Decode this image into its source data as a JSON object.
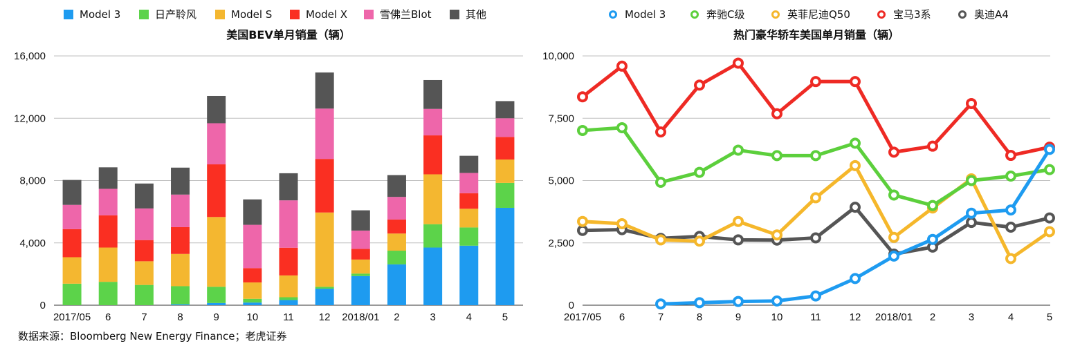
{
  "source": "数据来源：Bloomberg New Energy Finance；老虎证券",
  "colors": {
    "model3": "#1E9BF0",
    "leaf": "#5CD34A",
    "models": "#F4B730",
    "modelx": "#FA2F22",
    "bolt": "#EE66AA",
    "other": "#555555",
    "c_class": "#5CCF3C",
    "q50": "#F5B72B",
    "bmw3": "#EE2A24",
    "a4": "#555555"
  },
  "chart_data": [
    {
      "type": "bar",
      "stacked": true,
      "title": "美国BEV单月销量（辆）",
      "xlabel": "",
      "ylabel": "",
      "ylim": [
        0,
        16000
      ],
      "yticks": [
        "0",
        "4,000",
        "8,000",
        "12,000",
        "16,000"
      ],
      "grid": true,
      "legend_position": "top",
      "categories": [
        "2017/05",
        "6",
        "7",
        "8",
        "9",
        "10",
        "11",
        "12",
        "2018/01",
        "2",
        "3",
        "4",
        "5"
      ],
      "series": [
        {
          "name": "Model 3",
          "color_key": "model3",
          "values": [
            0,
            0,
            0,
            60,
            140,
            170,
            330,
            1060,
            1870,
            2620,
            3700,
            3820,
            6250
          ]
        },
        {
          "name": "日产聆风",
          "color_key": "leaf",
          "values": [
            1380,
            1500,
            1300,
            1160,
            1040,
            240,
            180,
            120,
            160,
            880,
            1500,
            1170,
            1600
          ]
        },
        {
          "name": "Model S",
          "color_key": "models",
          "values": [
            1700,
            2200,
            1520,
            2070,
            4480,
            1050,
            1400,
            4770,
            900,
            1100,
            3200,
            1200,
            1500
          ]
        },
        {
          "name": "Model X",
          "color_key": "modelx",
          "values": [
            1800,
            2070,
            1360,
            1720,
            3380,
            920,
            1780,
            3440,
            680,
            900,
            2500,
            1000,
            1450
          ]
        },
        {
          "name": "雪佛兰Blot",
          "color_key": "bolt",
          "values": [
            1560,
            1700,
            2030,
            2090,
            2640,
            2780,
            3040,
            3230,
            1180,
            1450,
            1700,
            1300,
            1200
          ]
        },
        {
          "name": "其他",
          "color_key": "other",
          "values": [
            1600,
            1380,
            1600,
            1730,
            1750,
            1630,
            1740,
            2320,
            1300,
            1400,
            1850,
            1100,
            1100
          ]
        }
      ]
    },
    {
      "type": "line",
      "title": "热门豪华轿车美国单月销量（辆）",
      "xlabel": "",
      "ylabel": "",
      "ylim": [
        0,
        10000
      ],
      "yticks": [
        "0",
        "2,500",
        "5,000",
        "7,500",
        "10,000"
      ],
      "grid": true,
      "legend_position": "top",
      "categories": [
        "2017/05",
        "6",
        "7",
        "8",
        "9",
        "10",
        "11",
        "12",
        "2018/01",
        "2",
        "3",
        "4",
        "5"
      ],
      "series": [
        {
          "name": "Model 3",
          "color_key": "model3",
          "values": [
            null,
            null,
            50,
            100,
            150,
            170,
            370,
            1070,
            1970,
            2640,
            3690,
            3820,
            6250
          ]
        },
        {
          "name": "奔驰C级",
          "color_key": "c_class",
          "values": [
            7010,
            7120,
            4930,
            5330,
            6220,
            6000,
            6000,
            6500,
            4420,
            4000,
            5000,
            5180,
            5440
          ]
        },
        {
          "name": "英菲尼迪Q50",
          "color_key": "q50",
          "values": [
            3360,
            3270,
            2620,
            2570,
            3360,
            2820,
            4310,
            5600,
            2720,
            3900,
            5070,
            1870,
            2950
          ]
        },
        {
          "name": "宝马3系",
          "color_key": "bmw3",
          "values": [
            8360,
            9590,
            6950,
            8830,
            9710,
            7680,
            8970,
            8970,
            6140,
            6380,
            8090,
            6010,
            6340
          ]
        },
        {
          "name": "奥迪A4",
          "color_key": "a4",
          "values": [
            3000,
            3030,
            2680,
            2760,
            2620,
            2610,
            2700,
            3930,
            2050,
            2330,
            3320,
            3130,
            3500
          ]
        }
      ]
    }
  ]
}
